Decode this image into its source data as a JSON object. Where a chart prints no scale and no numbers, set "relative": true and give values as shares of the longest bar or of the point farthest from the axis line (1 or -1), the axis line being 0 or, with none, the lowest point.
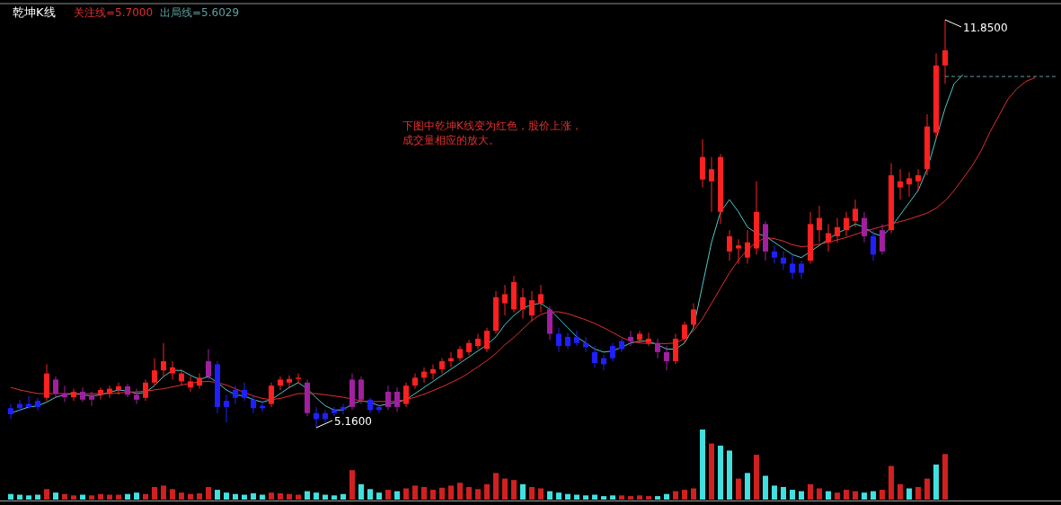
{
  "chart_data": [
    {
      "type": "candlestick",
      "title": "乾坤K线",
      "annotations": [
        "关注线=5.7000",
        "出局线=5.6029",
        "下图中乾坤K线变为红色，股价上涨，",
        "成交量相应的放大。",
        "11.8500",
        "5.1600"
      ],
      "categories": [
        null,
        null,
        null,
        null,
        null,
        null,
        null,
        null,
        null,
        null,
        null,
        null,
        null,
        null,
        null,
        null,
        null,
        null,
        null,
        null,
        null,
        null,
        null,
        null,
        null,
        null,
        null,
        null,
        null,
        null,
        null,
        null,
        null,
        null,
        null,
        null,
        null,
        null,
        null,
        null,
        null,
        null,
        null,
        null,
        null,
        null,
        null,
        null,
        null,
        null,
        null,
        null,
        null,
        null,
        null,
        null,
        null,
        null,
        null,
        null,
        null,
        null,
        null,
        null,
        null,
        null,
        null,
        null,
        null,
        null,
        null,
        null,
        null,
        null,
        null,
        null,
        null,
        null,
        null,
        null,
        null,
        null,
        null,
        null,
        null,
        null,
        null,
        null,
        null,
        null,
        null,
        null,
        null,
        null,
        null,
        null,
        null,
        null,
        null,
        null,
        null,
        null,
        null,
        null,
        null,
        null,
        null,
        null,
        null,
        null,
        null,
        null,
        null,
        null,
        null,
        null,
        null
      ],
      "ohlc": [
        [
          5.48,
          5.55,
          5.3,
          5.38
        ],
        [
          5.55,
          5.62,
          5.42,
          5.48
        ],
        [
          5.55,
          5.68,
          5.47,
          5.5
        ],
        [
          5.6,
          5.65,
          5.44,
          5.5
        ],
        [
          5.65,
          6.2,
          5.6,
          6.05
        ],
        [
          5.95,
          6.0,
          5.65,
          5.72
        ],
        [
          5.72,
          5.85,
          5.58,
          5.66
        ],
        [
          5.66,
          5.8,
          5.6,
          5.75
        ],
        [
          5.75,
          5.82,
          5.58,
          5.62
        ],
        [
          5.7,
          5.75,
          5.52,
          5.62
        ],
        [
          5.7,
          5.82,
          5.62,
          5.78
        ],
        [
          5.72,
          5.85,
          5.65,
          5.8
        ],
        [
          5.78,
          5.9,
          5.7,
          5.84
        ],
        [
          5.84,
          5.88,
          5.66,
          5.7
        ],
        [
          5.7,
          5.8,
          5.55,
          5.62
        ],
        [
          5.65,
          5.95,
          5.6,
          5.9
        ],
        [
          5.9,
          6.3,
          5.85,
          6.1
        ],
        [
          6.1,
          6.55,
          6.0,
          6.25
        ],
        [
          6.05,
          6.25,
          5.95,
          6.15
        ],
        [
          5.92,
          6.12,
          5.85,
          6.05
        ],
        [
          5.82,
          6.0,
          5.75,
          5.92
        ],
        [
          5.85,
          6.05,
          5.8,
          5.98
        ],
        [
          6.25,
          6.45,
          5.95,
          6.0
        ],
        [
          6.2,
          6.25,
          5.4,
          5.5
        ],
        [
          5.6,
          5.7,
          5.25,
          5.5
        ],
        [
          5.78,
          5.85,
          5.55,
          5.65
        ],
        [
          5.78,
          5.9,
          5.6,
          5.65
        ],
        [
          5.62,
          5.7,
          5.4,
          5.48
        ],
        [
          5.52,
          5.6,
          5.42,
          5.48
        ],
        [
          5.55,
          5.9,
          5.5,
          5.85
        ],
        [
          5.85,
          6.0,
          5.78,
          5.95
        ],
        [
          5.9,
          6.02,
          5.82,
          5.96
        ],
        [
          5.96,
          6.05,
          5.88,
          5.98
        ],
        [
          5.9,
          5.95,
          5.35,
          5.4
        ],
        [
          5.4,
          5.5,
          5.16,
          5.3
        ],
        [
          5.4,
          5.45,
          5.25,
          5.3
        ],
        [
          5.45,
          5.5,
          5.35,
          5.4
        ],
        [
          5.5,
          5.55,
          5.38,
          5.45
        ],
        [
          5.95,
          6.05,
          5.45,
          5.5
        ],
        [
          5.95,
          6.0,
          5.55,
          5.62
        ],
        [
          5.62,
          5.65,
          5.4,
          5.45
        ],
        [
          5.5,
          5.55,
          5.4,
          5.45
        ],
        [
          5.75,
          5.85,
          5.45,
          5.5
        ],
        [
          5.75,
          5.82,
          5.42,
          5.5
        ],
        [
          5.55,
          5.9,
          5.5,
          5.85
        ],
        [
          5.85,
          6.05,
          5.8,
          5.98
        ],
        [
          5.98,
          6.15,
          5.9,
          6.08
        ],
        [
          6.05,
          6.2,
          5.95,
          6.12
        ],
        [
          6.12,
          6.3,
          6.05,
          6.25
        ],
        [
          6.25,
          6.4,
          6.15,
          6.3
        ],
        [
          6.3,
          6.5,
          6.25,
          6.45
        ],
        [
          6.4,
          6.6,
          6.35,
          6.55
        ],
        [
          6.5,
          6.7,
          6.45,
          6.62
        ],
        [
          6.45,
          6.8,
          6.4,
          6.75
        ],
        [
          6.75,
          7.4,
          6.7,
          7.3
        ],
        [
          7.2,
          7.5,
          7.0,
          7.35
        ],
        [
          7.1,
          7.65,
          7.05,
          7.55
        ],
        [
          7.1,
          7.45,
          6.95,
          7.3
        ],
        [
          7.0,
          7.4,
          6.9,
          7.25
        ],
        [
          7.2,
          7.5,
          7.05,
          7.35
        ],
        [
          7.1,
          7.15,
          6.6,
          6.7
        ],
        [
          6.7,
          6.8,
          6.4,
          6.5
        ],
        [
          6.65,
          6.72,
          6.45,
          6.5
        ],
        [
          6.65,
          6.75,
          6.5,
          6.55
        ],
        [
          6.55,
          6.65,
          6.4,
          6.48
        ],
        [
          6.4,
          6.5,
          6.15,
          6.22
        ],
        [
          6.3,
          6.35,
          6.1,
          6.2
        ],
        [
          6.5,
          6.55,
          6.25,
          6.3
        ],
        [
          6.58,
          6.62,
          6.4,
          6.45
        ],
        [
          6.65,
          6.75,
          6.5,
          6.58
        ],
        [
          6.6,
          6.75,
          6.55,
          6.7
        ],
        [
          6.55,
          6.72,
          6.5,
          6.62
        ],
        [
          6.55,
          6.62,
          6.3,
          6.4
        ],
        [
          6.4,
          6.5,
          6.1,
          6.25
        ],
        [
          6.25,
          6.7,
          6.2,
          6.62
        ],
        [
          6.62,
          6.9,
          6.55,
          6.85
        ],
        [
          6.85,
          7.2,
          6.8,
          7.1
        ],
        [
          9.23,
          9.89,
          9.1,
          9.6
        ],
        [
          9.2,
          9.6,
          8.7,
          9.4
        ],
        [
          8.7,
          9.65,
          8.5,
          9.6
        ],
        [
          8.05,
          8.4,
          7.9,
          8.3
        ],
        [
          8.1,
          8.25,
          7.85,
          8.15
        ],
        [
          7.95,
          8.4,
          7.85,
          8.2
        ],
        [
          8.1,
          9.2,
          8.0,
          8.7
        ],
        [
          8.5,
          8.55,
          7.9,
          8.05
        ],
        [
          8.05,
          8.15,
          7.85,
          7.95
        ],
        [
          7.95,
          8.05,
          7.75,
          7.85
        ],
        [
          7.85,
          8.0,
          7.6,
          7.7
        ],
        [
          7.85,
          7.9,
          7.6,
          7.7
        ],
        [
          7.9,
          8.7,
          7.85,
          8.5
        ],
        [
          8.4,
          8.8,
          8.2,
          8.6
        ],
        [
          8.2,
          8.5,
          8.05,
          8.35
        ],
        [
          8.3,
          8.6,
          8.2,
          8.45
        ],
        [
          8.4,
          8.7,
          8.3,
          8.6
        ],
        [
          8.55,
          8.9,
          8.45,
          8.75
        ],
        [
          8.6,
          8.7,
          8.2,
          8.3
        ],
        [
          8.3,
          8.4,
          7.9,
          8.0
        ],
        [
          8.4,
          8.5,
          8.0,
          8.05
        ],
        [
          8.4,
          9.5,
          8.35,
          9.3
        ],
        [
          9.1,
          9.4,
          8.9,
          9.2
        ],
        [
          9.15,
          9.35,
          8.95,
          9.25
        ],
        [
          9.2,
          9.4,
          9.05,
          9.3
        ],
        [
          9.4,
          10.3,
          9.3,
          10.1
        ],
        [
          10.0,
          11.3,
          9.9,
          11.1
        ],
        [
          11.1,
          11.85,
          10.8,
          11.35
        ],
        null,
        null,
        null,
        null,
        null,
        null,
        null,
        null,
        null,
        null,
        null,
        null
      ],
      "colors": [
        "#2020ff",
        "#2020ff",
        "#2020ff",
        "#2020ff",
        "#ff2020",
        "#a020a0",
        "#a020a0",
        "#ff2020",
        "#a020a0",
        "#a020a0",
        "#ff2020",
        "#ff2020",
        "#ff2020",
        "#a020a0",
        "#a020a0",
        "#ff2020",
        "#ff2020",
        "#ff2020",
        "#ff2020",
        "#ff2020",
        "#ff2020",
        "#ff2020",
        "#a020a0",
        "#2020ff",
        "#2020ff",
        "#2020ff",
        "#2020ff",
        "#2020ff",
        "#2020ff",
        "#ff2020",
        "#ff2020",
        "#ff2020",
        "#ff2020",
        "#a020a0",
        "#2020ff",
        "#2020ff",
        "#2020ff",
        "#2020ff",
        "#a020a0",
        "#a020a0",
        "#2020ff",
        "#2020ff",
        "#a020a0",
        "#a020a0",
        "#ff2020",
        "#ff2020",
        "#ff2020",
        "#ff2020",
        "#ff2020",
        "#ff2020",
        "#ff2020",
        "#ff2020",
        "#ff2020",
        "#ff2020",
        "#ff2020",
        "#ff2020",
        "#ff2020",
        "#ff2020",
        "#ff2020",
        "#ff2020",
        "#a020a0",
        "#2020ff",
        "#2020ff",
        "#2020ff",
        "#2020ff",
        "#2020ff",
        "#2020ff",
        "#2020ff",
        "#2020ff",
        "#a020a0",
        "#ff2020",
        "#ff2020",
        "#a020a0",
        "#a020a0",
        "#ff2020",
        "#ff2020",
        "#ff2020",
        "#ff2020",
        "#ff2020",
        "#ff2020",
        "#ff2020",
        "#ff2020",
        "#ff2020",
        "#ff2020",
        "#a020a0",
        "#2020ff",
        "#2020ff",
        "#2020ff",
        "#2020ff",
        "#ff2020",
        "#ff2020",
        "#ff2020",
        "#ff2020",
        "#ff2020",
        "#ff2020",
        "#a020a0",
        "#2020ff",
        "#a020a0",
        "#ff2020",
        "#ff2020",
        "#ff2020",
        "#ff2020",
        "#ff2020",
        "#ff2020",
        "#ff2020",
        null,
        null,
        null,
        null,
        null,
        null,
        null,
        null,
        null,
        null,
        null,
        null
      ],
      "series": [
        {
          "type": "line",
          "color": "#50c8c8",
          "values": [
            5.4,
            5.45,
            5.5,
            5.52,
            5.58,
            5.66,
            5.7,
            5.72,
            5.7,
            5.68,
            5.7,
            5.74,
            5.78,
            5.76,
            5.72,
            5.74,
            5.85,
            6.0,
            6.1,
            6.1,
            6.02,
            5.95,
            6.0,
            5.9,
            5.78,
            5.7,
            5.68,
            5.62,
            5.58,
            5.62,
            5.72,
            5.82,
            5.9,
            5.8,
            5.65,
            5.52,
            5.45,
            5.45,
            5.55,
            5.6,
            5.58,
            5.52,
            5.55,
            5.58,
            5.62,
            5.72,
            5.82,
            5.92,
            6.02,
            6.12,
            6.22,
            6.32,
            6.42,
            6.52,
            6.65,
            6.85,
            7.0,
            7.12,
            7.18,
            7.2,
            7.1,
            6.95,
            6.8,
            6.65,
            6.55,
            6.45,
            6.4,
            6.42,
            6.48,
            6.55,
            6.58,
            6.58,
            6.52,
            6.45,
            6.45,
            6.55,
            6.8,
            7.5,
            8.2,
            8.7,
            8.9,
            8.7,
            8.45,
            8.35,
            8.3,
            8.2,
            8.1,
            8.0,
            7.95,
            8.05,
            8.15,
            8.25,
            8.35,
            8.42,
            8.5,
            8.45,
            8.35,
            8.3,
            8.45,
            8.65,
            8.85,
            9.05,
            9.4,
            9.9,
            10.4,
            10.8,
            10.95,
            null,
            null,
            null,
            null,
            null,
            null,
            null,
            null,
            null,
            null
          ]
        },
        {
          "type": "line",
          "color": "#e03030",
          "values": [
            5.82,
            5.78,
            5.75,
            5.72,
            5.72,
            5.72,
            5.72,
            5.72,
            5.72,
            5.72,
            5.72,
            5.72,
            5.73,
            5.74,
            5.75,
            5.76,
            5.78,
            5.8,
            5.83,
            5.86,
            5.89,
            5.91,
            5.92,
            5.9,
            5.86,
            5.8,
            5.74,
            5.68,
            5.64,
            5.62,
            5.64,
            5.68,
            5.72,
            5.72,
            5.72,
            5.7,
            5.68,
            5.66,
            5.63,
            5.6,
            5.59,
            5.59,
            5.59,
            5.6,
            5.62,
            5.66,
            5.71,
            5.77,
            5.83,
            5.9,
            5.97,
            6.06,
            6.16,
            6.26,
            6.38,
            6.52,
            6.64,
            6.78,
            6.92,
            7.02,
            7.06,
            7.06,
            7.03,
            6.98,
            6.93,
            6.87,
            6.8,
            6.72,
            6.64,
            6.58,
            6.55,
            6.54,
            6.54,
            6.54,
            6.55,
            6.62,
            6.75,
            6.95,
            7.2,
            7.45,
            7.7,
            7.91,
            8.08,
            8.2,
            8.28,
            8.26,
            8.22,
            8.16,
            8.13,
            8.14,
            8.17,
            8.2,
            8.24,
            8.28,
            8.33,
            8.38,
            8.42,
            8.46,
            8.5,
            8.54,
            8.58,
            8.63,
            8.68,
            8.76,
            8.88,
            9.05,
            9.25,
            9.45,
            9.7,
            10.01,
            10.28,
            10.55,
            10.72,
            10.84,
            10.9,
            null,
            null
          ]
        }
      ],
      "ref_lines": [
        {
          "axis": "y",
          "value": 10.92,
          "color": "#5f9ea0",
          "line_style": "dashed"
        }
      ]
    },
    {
      "type": "bar",
      "relative": true,
      "categories": [
        null,
        null,
        null,
        null,
        null,
        null,
        null,
        null,
        null,
        null,
        null,
        null,
        null,
        null,
        null,
        null,
        null,
        null,
        null,
        null,
        null,
        null,
        null,
        null,
        null,
        null,
        null,
        null,
        null,
        null,
        null,
        null,
        null,
        null,
        null,
        null,
        null,
        null,
        null,
        null,
        null,
        null,
        null,
        null,
        null,
        null,
        null,
        null,
        null,
        null,
        null,
        null,
        null,
        null,
        null,
        null,
        null,
        null,
        null,
        null,
        null,
        null,
        null,
        null,
        null,
        null,
        null,
        null,
        null,
        null,
        null,
        null,
        null,
        null,
        null,
        null,
        null,
        null,
        null,
        null,
        null,
        null,
        null,
        null,
        null,
        null,
        null,
        null,
        null,
        null,
        null,
        null,
        null,
        null,
        null,
        null,
        null,
        null,
        null,
        null,
        null,
        null,
        null,
        null,
        null,
        null,
        null,
        null,
        null,
        null,
        null,
        null,
        null,
        null,
        null,
        null,
        null
      ],
      "values": [
        0.08,
        0.07,
        0.06,
        0.07,
        0.15,
        0.1,
        0.08,
        0.06,
        0.07,
        0.06,
        0.08,
        0.07,
        0.07,
        0.08,
        0.1,
        0.08,
        0.18,
        0.2,
        0.15,
        0.1,
        0.08,
        0.09,
        0.18,
        0.14,
        0.1,
        0.08,
        0.07,
        0.09,
        0.07,
        0.1,
        0.09,
        0.08,
        0.07,
        0.12,
        0.1,
        0.07,
        0.06,
        0.08,
        0.42,
        0.22,
        0.15,
        0.1,
        0.14,
        0.12,
        0.16,
        0.2,
        0.18,
        0.14,
        0.17,
        0.2,
        0.24,
        0.18,
        0.15,
        0.22,
        0.38,
        0.3,
        0.28,
        0.22,
        0.18,
        0.16,
        0.12,
        0.1,
        0.08,
        0.07,
        0.06,
        0.07,
        0.05,
        0.06,
        0.06,
        0.05,
        0.06,
        0.05,
        0.05,
        0.08,
        0.12,
        0.14,
        0.16,
        1,
        0.8,
        0.77,
        0.7,
        0.3,
        0.38,
        0.64,
        0.34,
        0.2,
        0.18,
        0.14,
        0.12,
        0.22,
        0.16,
        0.12,
        0.1,
        0.14,
        0.12,
        0.1,
        0.12,
        0.14,
        0.48,
        0.22,
        0.16,
        0.18,
        0.3,
        0.5,
        0.65,
        null,
        null,
        null,
        null,
        null,
        null,
        null,
        null,
        null,
        null,
        null,
        null
      ],
      "colors": [
        "#40e0e0",
        "#40e0e0",
        "#40e0e0",
        "#40e0e0",
        "#d02020",
        "#40e0e0",
        "#d02020",
        "#d02020",
        "#40e0e0",
        "#d02020",
        "#d02020",
        "#d02020",
        "#d02020",
        "#40e0e0",
        "#40e0e0",
        "#d02020",
        "#d02020",
        "#d02020",
        "#d02020",
        "#d02020",
        "#d02020",
        "#d02020",
        "#d02020",
        "#40e0e0",
        "#40e0e0",
        "#40e0e0",
        "#40e0e0",
        "#40e0e0",
        "#40e0e0",
        "#d02020",
        "#d02020",
        "#d02020",
        "#d02020",
        "#40e0e0",
        "#40e0e0",
        "#40e0e0",
        "#40e0e0",
        "#40e0e0",
        "#d02020",
        "#40e0e0",
        "#40e0e0",
        "#40e0e0",
        "#d02020",
        "#40e0e0",
        "#d02020",
        "#d02020",
        "#d02020",
        "#d02020",
        "#d02020",
        "#d02020",
        "#d02020",
        "#d02020",
        "#d02020",
        "#d02020",
        "#d02020",
        "#d02020",
        "#d02020",
        "#40e0e0",
        "#d02020",
        "#d02020",
        "#40e0e0",
        "#40e0e0",
        "#40e0e0",
        "#40e0e0",
        "#40e0e0",
        "#40e0e0",
        "#40e0e0",
        "#40e0e0",
        "#d02020",
        "#d02020",
        "#d02020",
        "#d02020",
        "#40e0e0",
        "#40e0e0",
        "#d02020",
        "#d02020",
        "#d02020",
        "#40e0e0",
        "#d02020",
        "#40e0e0",
        "#40e0e0",
        "#d02020",
        "#40e0e0",
        "#d02020",
        "#40e0e0",
        "#40e0e0",
        "#40e0e0",
        "#40e0e0",
        "#40e0e0",
        "#d02020",
        "#d02020",
        "#40e0e0",
        "#d02020",
        "#d02020",
        "#d02020",
        "#40e0e0",
        "#40e0e0",
        "#d02020",
        "#d02020",
        "#d02020",
        "#40e0e0",
        "#d02020",
        "#d02020",
        "#40e0e0",
        "#d02020",
        null,
        null,
        null,
        null,
        null,
        null,
        null,
        null,
        null,
        null,
        null,
        null
      ]
    }
  ]
}
